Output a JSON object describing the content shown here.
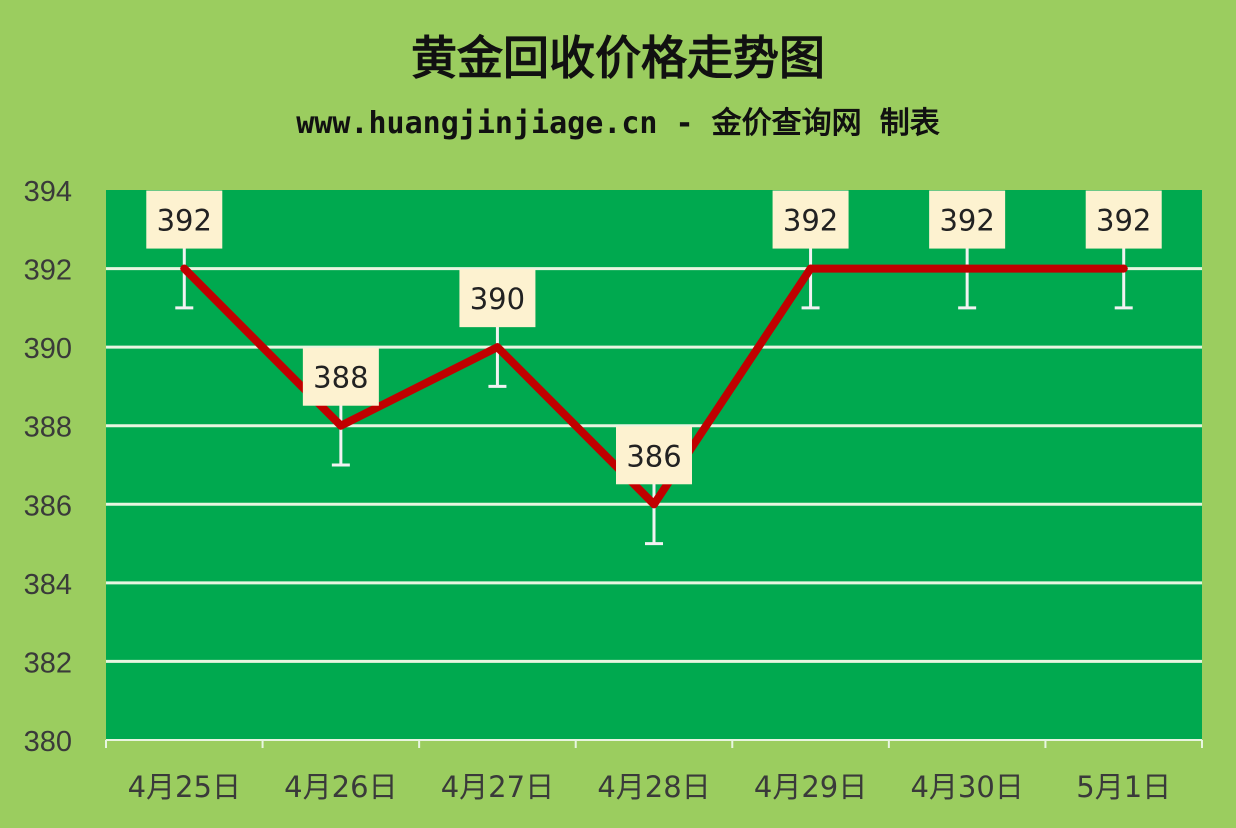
{
  "chart_data": {
    "type": "line",
    "title": "黄金回收价格走势图",
    "subtitle": "www.huangjinjiage.cn - 金价查询网 制表",
    "categories": [
      "4月25日",
      "4月26日",
      "4月27日",
      "4月28日",
      "4月29日",
      "4月30日",
      "5月1日"
    ],
    "values": [
      392,
      388,
      390,
      386,
      392,
      392,
      392
    ],
    "data_labels": [
      "392",
      "388",
      "390",
      "386",
      "392",
      "392",
      "392"
    ],
    "ylim": [
      380,
      394
    ],
    "yticks": [
      "380",
      "382",
      "384",
      "386",
      "388",
      "390",
      "392",
      "394"
    ],
    "error_bar_minus": 1,
    "grid": true,
    "legend": "none",
    "colors": {
      "background": "#9bcd5f",
      "plot": "#00a94f",
      "line": "#c00000",
      "label_bg": "#fdf2d0",
      "grid": "#e8f5e0"
    }
  }
}
